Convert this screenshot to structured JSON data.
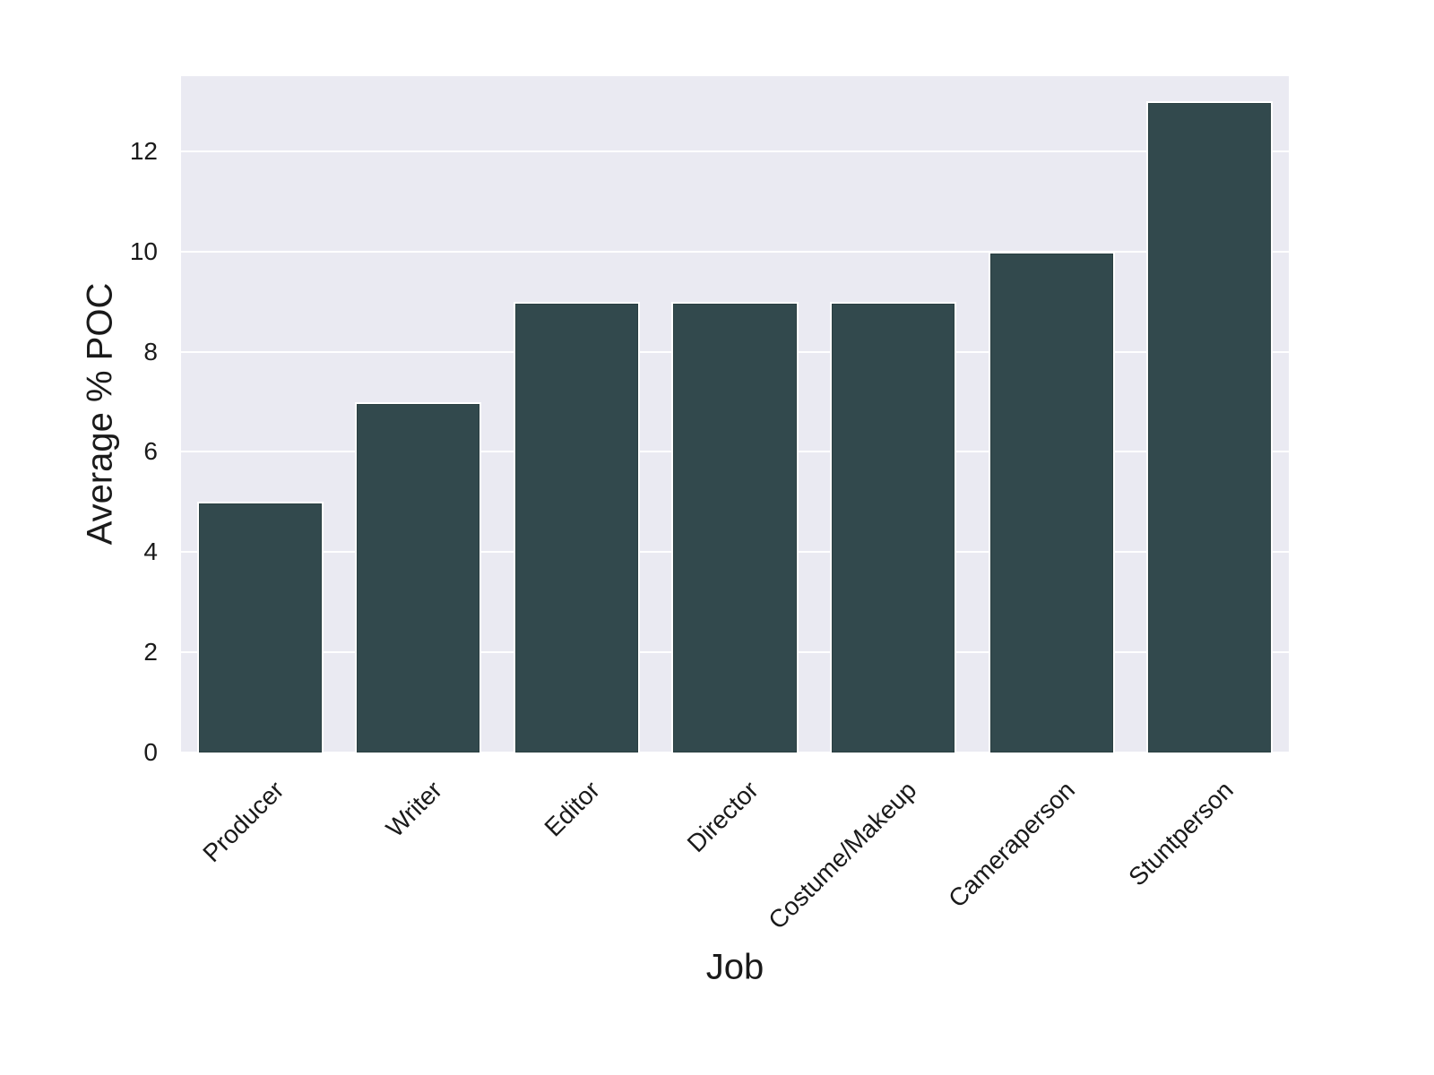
{
  "chart_data": {
    "type": "bar",
    "categories": [
      "Producer",
      "Writer",
      "Editor",
      "Director",
      "Costume/Makeup",
      "Cameraperson",
      "Stuntperson"
    ],
    "values": [
      5,
      7,
      9,
      9,
      9,
      10,
      13
    ],
    "title": "",
    "xlabel": "Job",
    "ylabel": "Average % POC",
    "ylim": [
      0,
      13.5
    ],
    "yticks": [
      0,
      2,
      4,
      6,
      8,
      10,
      12
    ],
    "grid": true,
    "legend": "none",
    "colors": {
      "bar": "#32494d",
      "bar_edge": "#ffffff",
      "bar_inner_edge": "#2a3f41",
      "plot_bg": "#eaeaf2",
      "grid": "#ffffff",
      "figure_bg": "#ffffff",
      "text": "#1a1a1a"
    }
  }
}
